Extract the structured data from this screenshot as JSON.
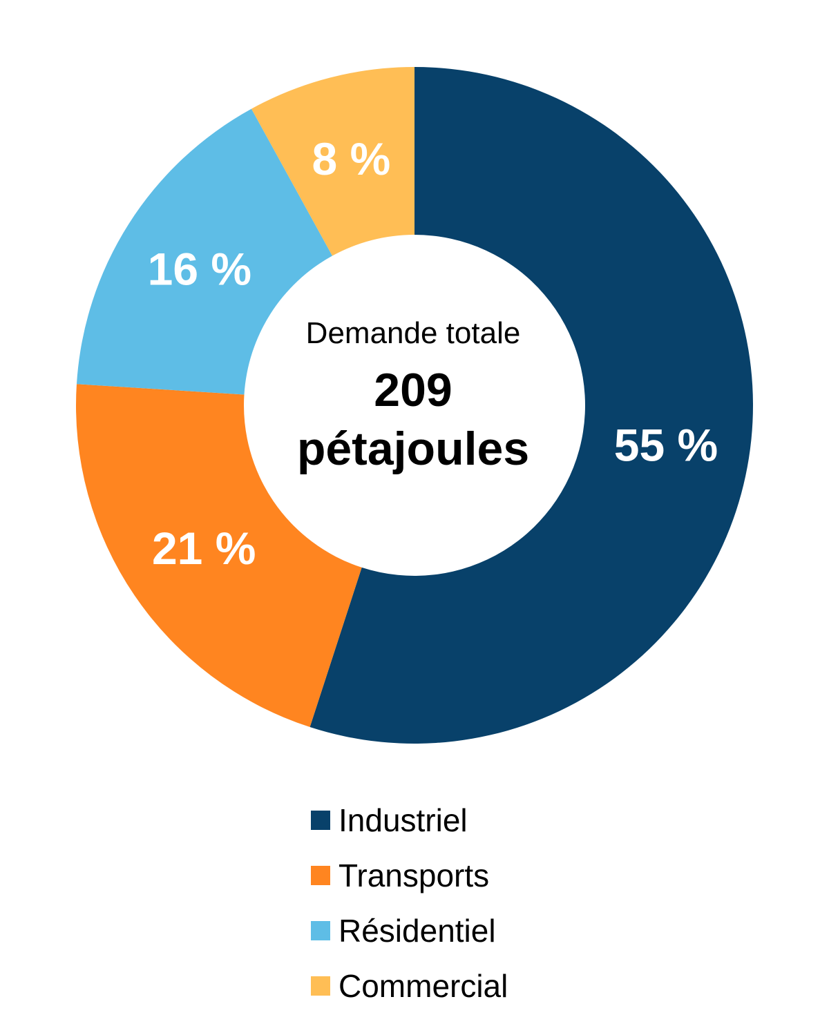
{
  "chart_data": {
    "type": "pie",
    "variant": "donut",
    "start_angle_deg": 0,
    "direction": "clockwise",
    "categories": [
      "Industriel",
      "Transports",
      "Résidentiel",
      "Commercial"
    ],
    "values": [
      55,
      21,
      16,
      8
    ],
    "value_labels": [
      "55 %",
      "21 %",
      "16 %",
      "8 %"
    ],
    "colors": [
      "#08416A",
      "#FF8520",
      "#5EBDE6",
      "#FFBE55"
    ],
    "center_label": {
      "caption": "Demande totale",
      "total_line1": "209",
      "total_line2": "pétajoules"
    },
    "legend": {
      "placement": "bottom",
      "entries": [
        "Industriel",
        "Transports",
        "Résidentiel",
        "Commercial"
      ]
    }
  }
}
